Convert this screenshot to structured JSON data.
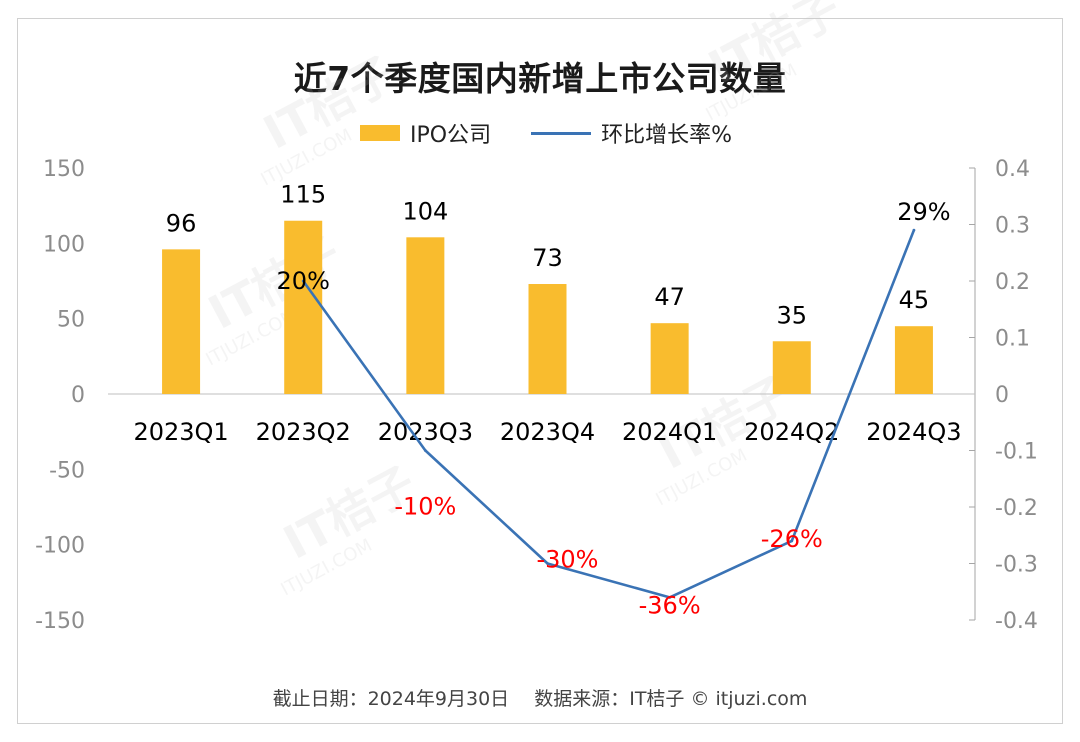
{
  "chart_data": {
    "type": "bar+line",
    "title": "近7个季度国内新增上市公司数量",
    "categories": [
      "2023Q1",
      "2023Q2",
      "2023Q3",
      "2023Q4",
      "2024Q1",
      "2024Q2",
      "2024Q3"
    ],
    "series": [
      {
        "name": "IPO公司",
        "type": "bar",
        "axis": "left",
        "values": [
          96,
          115,
          104,
          73,
          47,
          35,
          45
        ],
        "labels": [
          "96",
          "115",
          "104",
          "73",
          "47",
          "35",
          "45"
        ],
        "color": "#F9BC2E"
      },
      {
        "name": "环比增长率%",
        "type": "line",
        "axis": "right",
        "values": [
          0.2,
          -0.1,
          -0.3,
          -0.36,
          -0.26,
          0.29
        ],
        "x": [
          "2023Q2",
          "2023Q3",
          "2023Q4",
          "2024Q1",
          "2024Q2",
          "2024Q3"
        ],
        "labels": [
          "20%",
          "-10%",
          "-30%",
          "-36%",
          "-26%",
          "29%"
        ],
        "color": "#3A73B5"
      }
    ],
    "y_left": {
      "ylim": [
        -150,
        150
      ],
      "ticks": [
        "150",
        "100",
        "50",
        "0",
        "-50",
        "-100",
        "-150"
      ]
    },
    "y_right": {
      "ylim": [
        -0.4,
        0.4
      ],
      "ticks": [
        "0.4",
        "0.3",
        "0.2",
        "0.1",
        "0",
        "-0.1",
        "-0.2",
        "-0.3",
        "-0.4"
      ]
    },
    "grid": false,
    "legend_position": "top",
    "label_colors": {
      "positive": "#000000",
      "negative": "#FF0000"
    }
  },
  "footer": "截止日期：2024年9月30日　 数据来源：IT桔子 © itjuzi.com",
  "watermark": {
    "brand": "IT桔子",
    "site": "ITJUZI.COM"
  }
}
